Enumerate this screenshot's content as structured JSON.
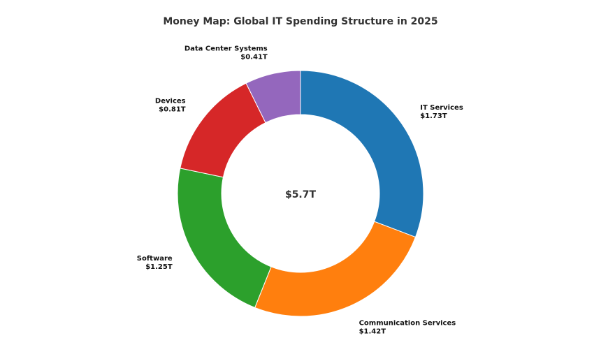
{
  "chart_data": {
    "type": "pie",
    "title": "Money Map: Global IT Spending Structure in 2025",
    "center_label": "$5.7T",
    "categories": [
      "IT Services",
      "Communication Services",
      "Software",
      "Devices",
      "Data Center Systems"
    ],
    "values": [
      1.73,
      1.42,
      1.25,
      0.81,
      0.41
    ],
    "value_labels": [
      "$1.73T",
      "$1.42T",
      "$1.25T",
      "$0.81T",
      "$0.41T"
    ],
    "unit": "T",
    "colors": [
      "#1f77b4",
      "#ff7f0e",
      "#2ca02c",
      "#d62728",
      "#9467bd"
    ],
    "start_angle_deg": 90,
    "direction": "clockwise",
    "donut": true,
    "legend": "none"
  }
}
